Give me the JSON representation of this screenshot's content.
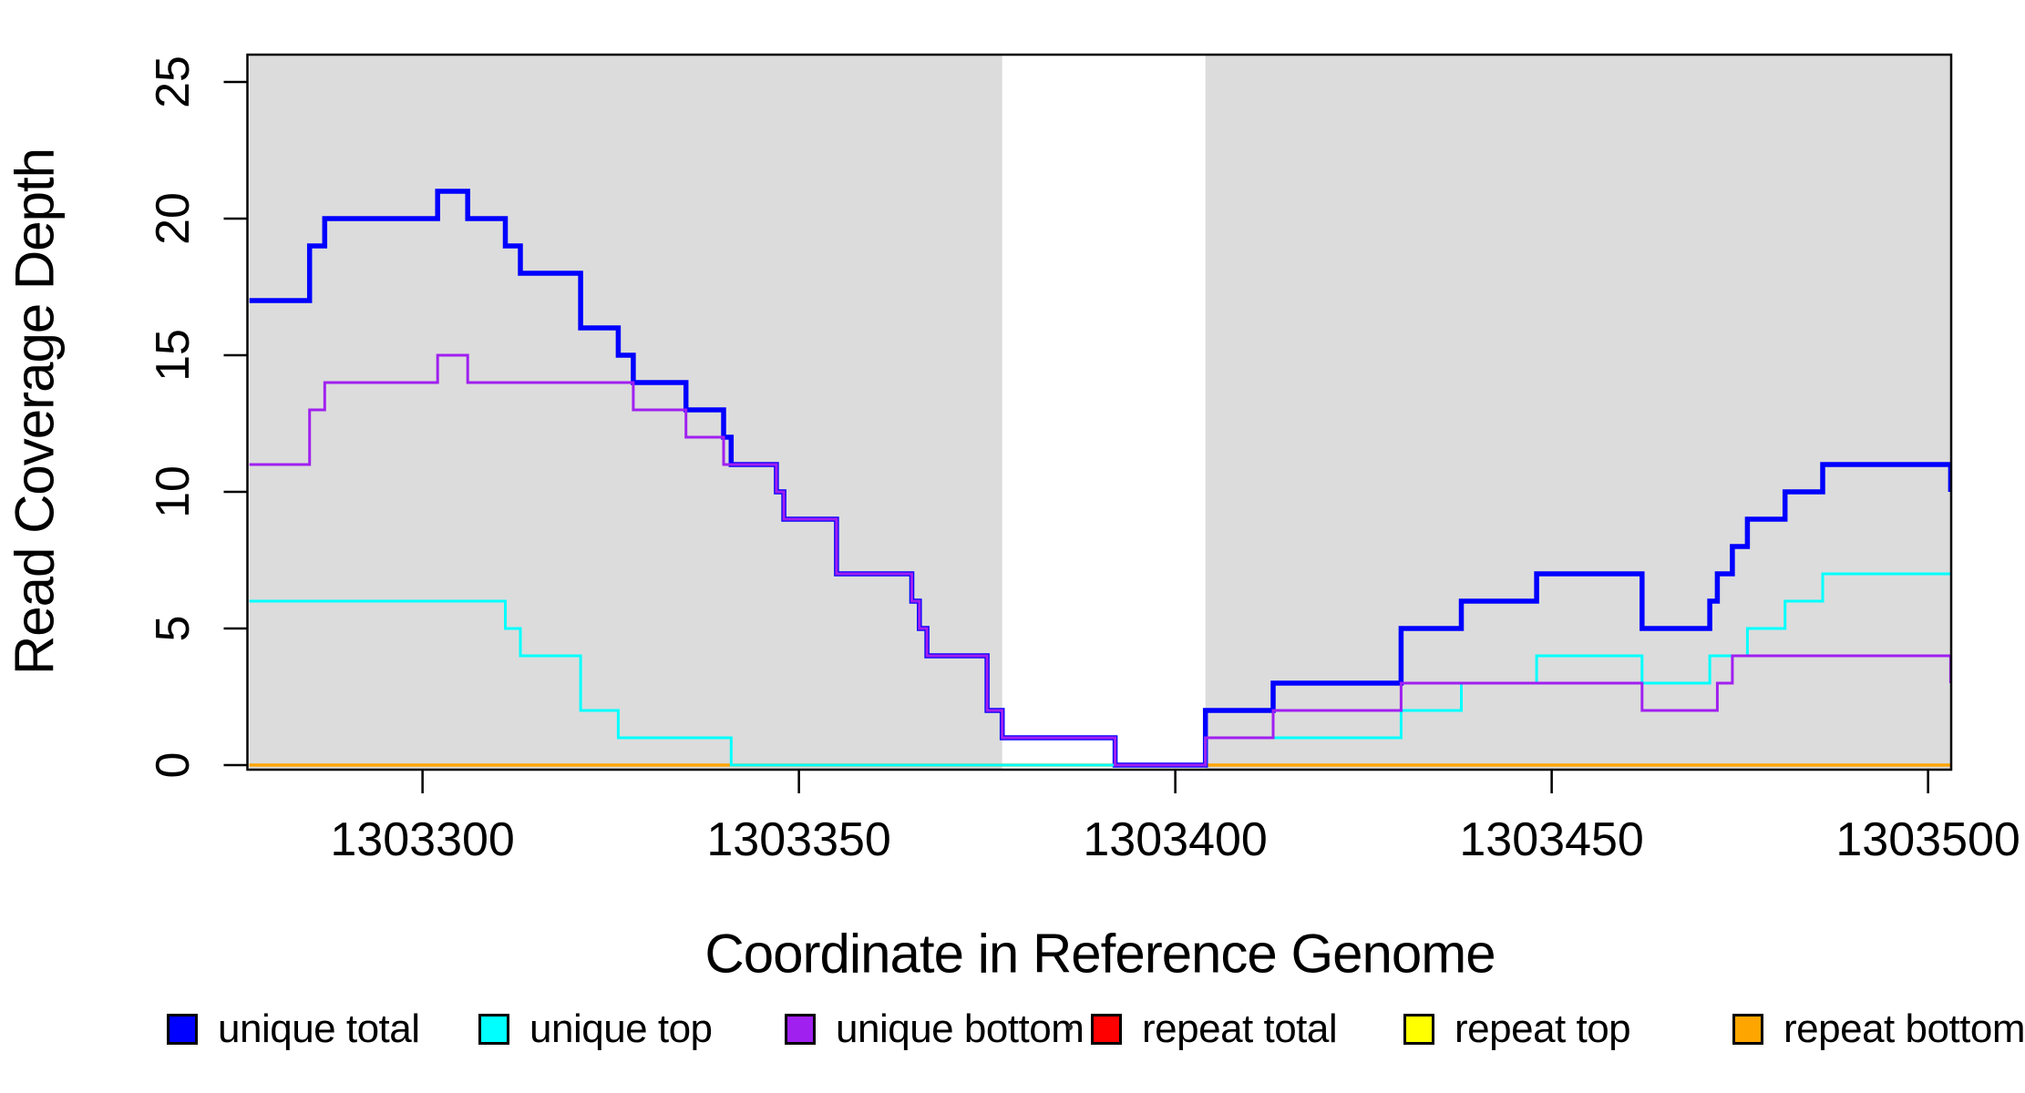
{
  "figure": {
    "y_axis": {
      "title": "Read Coverage Depth"
    },
    "x_axis": {
      "title": "Coordinate in Reference Genome"
    },
    "legend": [
      {
        "label": "unique total",
        "color": "#0000FF"
      },
      {
        "label": "unique top",
        "color": "#00FFFF"
      },
      {
        "label": "unique bottom",
        "color": "#A020F0"
      },
      {
        "label": "repeat total",
        "color": "#FF0000"
      },
      {
        "label": "repeat top",
        "color": "#FFFF00"
      },
      {
        "label": "repeat bottom",
        "color": "#FFA500"
      }
    ]
  },
  "chart_data": {
    "type": "line",
    "step": true,
    "title": "",
    "xlabel": "Coordinate in Reference Genome",
    "ylabel": "Read Coverage Depth",
    "x_range": [
      1303277,
      1303503
    ],
    "y_range": [
      0,
      26
    ],
    "x_ticks": [
      1303300,
      1303350,
      1303400,
      1303450,
      1303500
    ],
    "y_ticks": [
      0,
      5,
      10,
      15,
      20,
      25
    ],
    "grid": false,
    "legend_position": "bottom",
    "plot_bg": "#FFFFFF",
    "shaded_band_color": "#DCDCDC",
    "shaded_bands": [
      {
        "from": 1303277,
        "to": 1303377
      },
      {
        "from": 1303404,
        "to": 1303504
      }
    ],
    "draw_order": [
      "repeat total",
      "repeat top",
      "repeat bottom",
      "unique total",
      "unique top",
      "unique bottom"
    ],
    "series": [
      {
        "name": "unique total",
        "color": "#0000FF",
        "width": 5.5,
        "points": [
          [
            1303277,
            17
          ],
          [
            1303285,
            19
          ],
          [
            1303287,
            20
          ],
          [
            1303302,
            21
          ],
          [
            1303306,
            20
          ],
          [
            1303311,
            19
          ],
          [
            1303313,
            18
          ],
          [
            1303321,
            16
          ],
          [
            1303326,
            15
          ],
          [
            1303328,
            14
          ],
          [
            1303335,
            13
          ],
          [
            1303340,
            12
          ],
          [
            1303341,
            11
          ],
          [
            1303347,
            10
          ],
          [
            1303348,
            9
          ],
          [
            1303355,
            7
          ],
          [
            1303365,
            6
          ],
          [
            1303366,
            5
          ],
          [
            1303367,
            4
          ],
          [
            1303375,
            2
          ],
          [
            1303377,
            1
          ],
          [
            1303392,
            0
          ],
          [
            1303404,
            2
          ],
          [
            1303413,
            3
          ],
          [
            1303430,
            5
          ],
          [
            1303438,
            6
          ],
          [
            1303448,
            7
          ],
          [
            1303462,
            5
          ],
          [
            1303471,
            6
          ],
          [
            1303472,
            7
          ],
          [
            1303474,
            8
          ],
          [
            1303476,
            9
          ],
          [
            1303481,
            10
          ],
          [
            1303486,
            11
          ],
          [
            1303503,
            10
          ]
        ]
      },
      {
        "name": "unique top",
        "color": "#00FFFF",
        "width": 3,
        "points": [
          [
            1303277,
            6
          ],
          [
            1303311,
            5
          ],
          [
            1303313,
            4
          ],
          [
            1303321,
            2
          ],
          [
            1303326,
            1
          ],
          [
            1303341,
            0
          ],
          [
            1303404,
            1
          ],
          [
            1303430,
            2
          ],
          [
            1303438,
            3
          ],
          [
            1303448,
            4
          ],
          [
            1303462,
            3
          ],
          [
            1303471,
            4
          ],
          [
            1303476,
            5
          ],
          [
            1303481,
            6
          ],
          [
            1303486,
            7
          ]
        ]
      },
      {
        "name": "unique bottom",
        "color": "#A020F0",
        "width": 3,
        "points": [
          [
            1303277,
            11
          ],
          [
            1303285,
            13
          ],
          [
            1303287,
            14
          ],
          [
            1303302,
            15
          ],
          [
            1303306,
            14
          ],
          [
            1303328,
            13
          ],
          [
            1303335,
            12
          ],
          [
            1303340,
            11
          ],
          [
            1303347,
            10
          ],
          [
            1303348,
            9
          ],
          [
            1303355,
            7
          ],
          [
            1303365,
            6
          ],
          [
            1303366,
            5
          ],
          [
            1303367,
            4
          ],
          [
            1303375,
            2
          ],
          [
            1303377,
            1
          ],
          [
            1303392,
            0
          ],
          [
            1303404,
            1
          ],
          [
            1303413,
            2
          ],
          [
            1303430,
            3
          ],
          [
            1303462,
            2
          ],
          [
            1303472,
            3
          ],
          [
            1303474,
            4
          ],
          [
            1303503,
            3
          ]
        ]
      },
      {
        "name": "repeat total",
        "color": "#FF0000",
        "width": 3,
        "points": [
          [
            1303277,
            0
          ]
        ]
      },
      {
        "name": "repeat top",
        "color": "#FFFF00",
        "width": 3,
        "points": [
          [
            1303277,
            0
          ]
        ]
      },
      {
        "name": "repeat bottom",
        "color": "#FFA500",
        "width": 3.5,
        "points": [
          [
            1303277,
            0
          ]
        ]
      }
    ]
  }
}
